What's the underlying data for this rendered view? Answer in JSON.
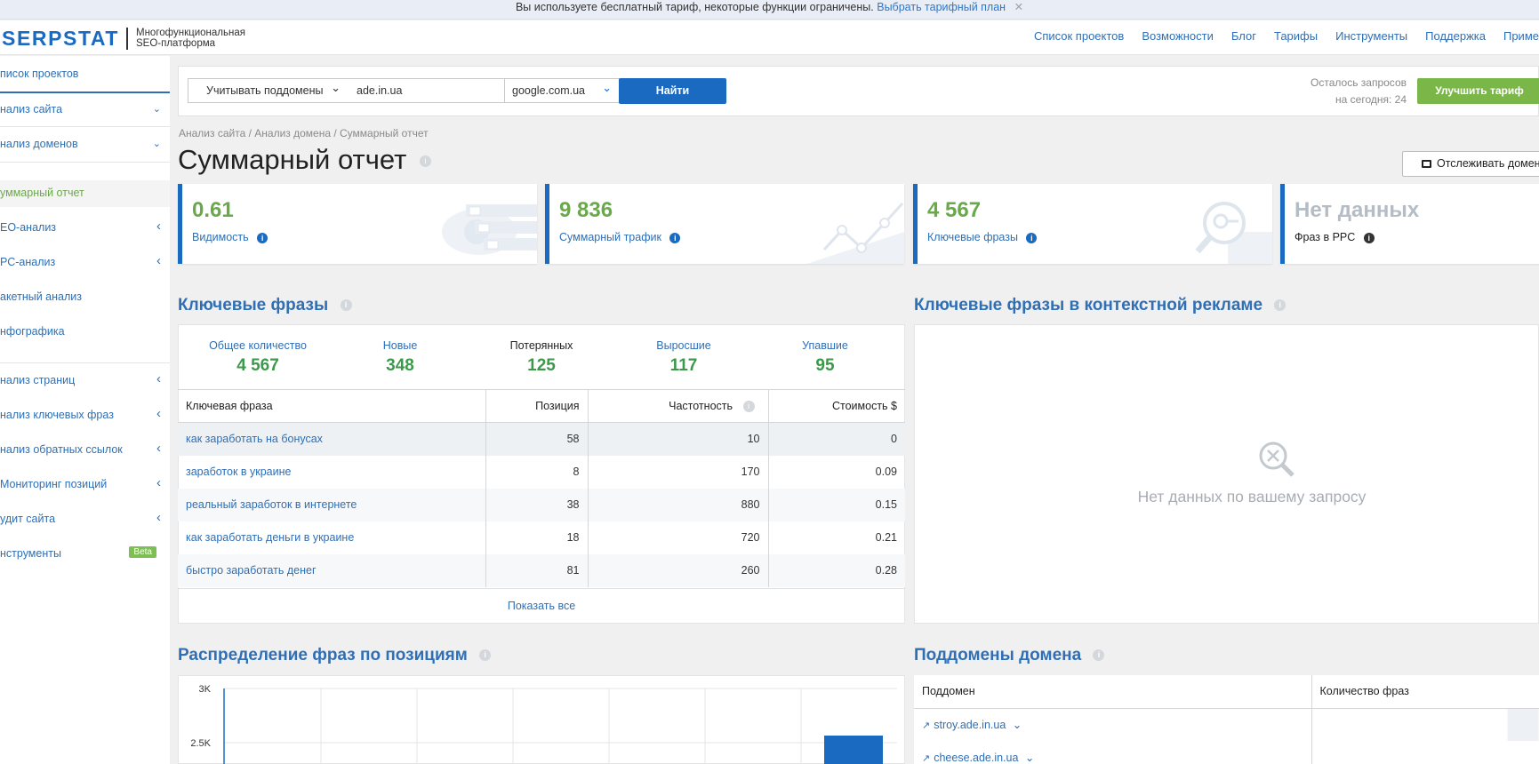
{
  "banner": {
    "text": "Вы используете бесплатный тариф, некоторые функции ограничены.",
    "link": "Выбрать тарифный план"
  },
  "header": {
    "logo": "SERPSTAT",
    "tagline_1": "Многофункциональная",
    "tagline_2": "SEO-платформа",
    "nav": [
      "Список проектов",
      "Возможности",
      "Блог",
      "Тарифы",
      "Инструменты",
      "Поддержка",
      "Приме"
    ]
  },
  "sidebar": {
    "projects": "писок проектов",
    "site_analysis": "нализ сайта",
    "domain_analysis": "нализ доменов",
    "summary": "уммарный отчет",
    "seo": "ЕО-анализ",
    "ppc": "РС-анализ",
    "batch": "акетный анализ",
    "infographics": "нфографика",
    "pages": "нализ страниц",
    "keywords": "нализ ключевых фраз",
    "backlinks": "нализ обратных ссылок",
    "monitoring": "Мониторинг позиций",
    "audit": "удит сайта",
    "tools": "нструменты",
    "beta": "Beta"
  },
  "search": {
    "subdomains": "Учитывать поддомены",
    "domain": "ade.in.ua",
    "engine": "google.com.ua",
    "find": "Найти",
    "remain_1": "Осталось запросов",
    "remain_2": "на сегодня: 24",
    "upgrade": "Улучшить тариф"
  },
  "breadcrumb": "Анализ сайта / Анализ домена / Суммарный отчет",
  "page_title": "Суммарный отчет",
  "track_button": "Отслеживать домен",
  "cards": [
    {
      "value": "0.61",
      "label": "Видимость"
    },
    {
      "value": "9 836",
      "label": "Суммарный трафик"
    },
    {
      "value": "4 567",
      "label": "Ключевые фразы"
    },
    {
      "value": "Нет данных",
      "label": "Фраз в PPC"
    }
  ],
  "keywords": {
    "title": "Ключевые фразы",
    "stats": [
      {
        "label": "Общее количество",
        "value": "4 567"
      },
      {
        "label": "Новые",
        "value": "348"
      },
      {
        "label": "Потерянных",
        "value": "125"
      },
      {
        "label": "Выросшие",
        "value": "117"
      },
      {
        "label": "Упавшие",
        "value": "95"
      }
    ],
    "columns": [
      "Ключевая фраза",
      "Позиция",
      "Частотность",
      "Стоимость $"
    ],
    "rows": [
      [
        "как заработать на бонусах",
        "58",
        "10",
        "0"
      ],
      [
        "заработок в украине",
        "8",
        "170",
        "0.09"
      ],
      [
        "реальный заработок в интернете",
        "38",
        "880",
        "0.15"
      ],
      [
        "как заработать деньги в украине",
        "18",
        "720",
        "0.21"
      ],
      [
        "быстро заработать денег",
        "81",
        "260",
        "0.28"
      ]
    ],
    "show_all": "Показать все"
  },
  "ppc": {
    "title": "Ключевые фразы в контекстной рекламе",
    "no_data": "Нет данных по вашему запросу"
  },
  "distribution": {
    "title": "Распределение фраз по позициям",
    "yticks": [
      "3K",
      "2.5K"
    ]
  },
  "subdomains": {
    "title": "Поддомены домена",
    "columns": [
      "Поддомен",
      "Количество фраз"
    ],
    "rows": [
      "stroy.ade.in.ua",
      "cheese.ade.in.ua"
    ]
  },
  "colors": {
    "brand": "#1b6ac2",
    "green": "#6aa94a",
    "upgrade": "#7bb649",
    "link": "#2f6fb5"
  }
}
